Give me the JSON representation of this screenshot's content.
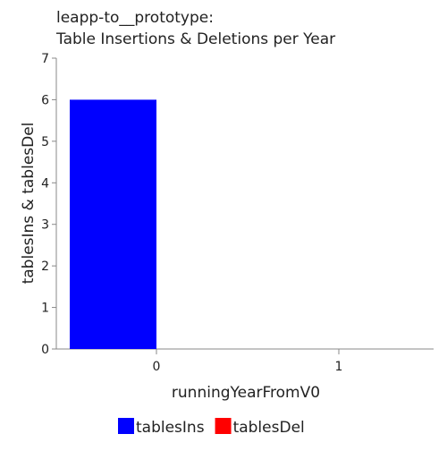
{
  "chart_data": {
    "type": "bar",
    "title": "leapp-to__prototype:",
    "subtitle": "Table Insertions & Deletions per Year",
    "xlabel": "runningYearFromV0",
    "ylabel": "tablesIns & tablesDel",
    "categories": [
      "0",
      "1"
    ],
    "series": [
      {
        "name": "tablesIns",
        "values": [
          6,
          0
        ],
        "color": "#0000ff"
      },
      {
        "name": "tablesDel",
        "values": [
          0,
          0
        ],
        "color": "#ff0000"
      }
    ],
    "ylim": [
      0,
      7
    ],
    "yticks": [
      "0",
      "1",
      "2",
      "3",
      "4",
      "5",
      "6",
      "7"
    ],
    "legend": "bottom",
    "grid": false
  }
}
